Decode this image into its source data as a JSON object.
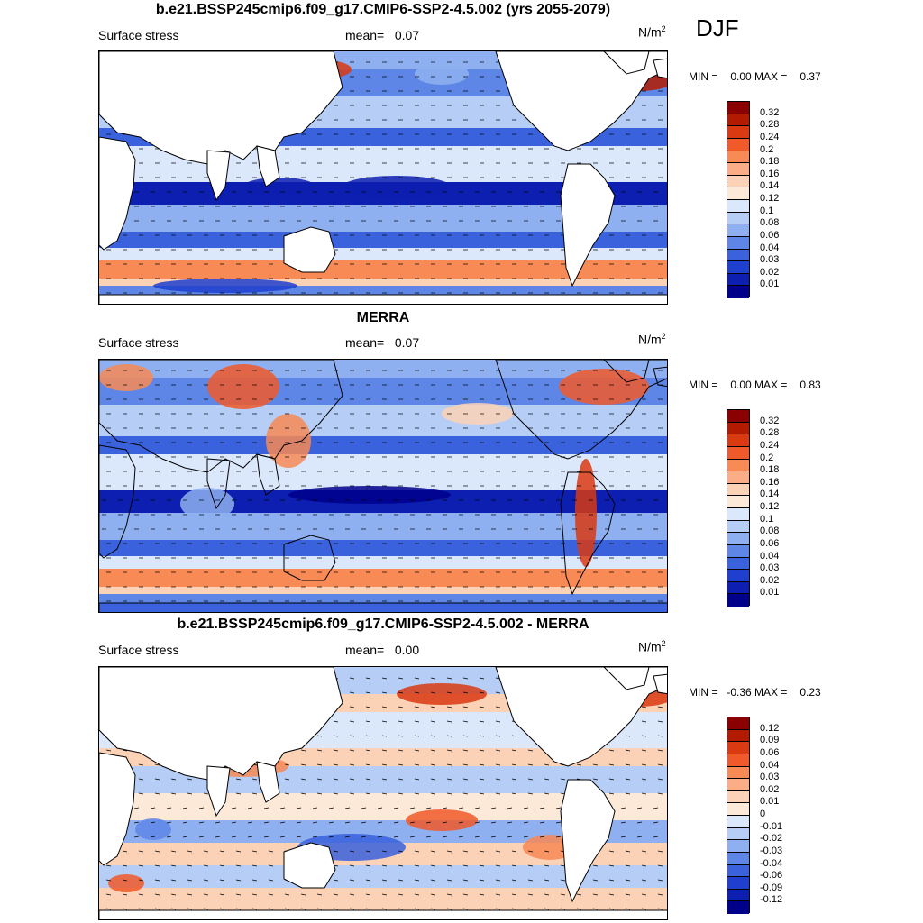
{
  "season": "DJF",
  "panels": [
    {
      "title": "b.e21.BSSP245cmip6.f09_g17.CMIP6-SSP2-4.5.002 (yrs 2055-2079)",
      "left_label": "Surface stress",
      "mean_label": "mean=",
      "mean_value": "0.07",
      "units": "N/m",
      "units_exp": "2",
      "min_label": "MIN =",
      "min_value": "0.00",
      "max_label": "MAX =",
      "max_value": "0.37",
      "colorbar": {
        "labels": [
          "0.32",
          "0.28",
          "0.24",
          "0.2",
          "0.18",
          "0.16",
          "0.14",
          "0.12",
          "0.1",
          "0.08",
          "0.06",
          "0.04",
          "0.03",
          "0.02",
          "0.01"
        ],
        "colors": [
          "#8b0000",
          "#b31b00",
          "#d93a12",
          "#f0592a",
          "#f78a55",
          "#fbae85",
          "#fcd2b6",
          "#fde9d8",
          "#dbe7fb",
          "#b6cdf6",
          "#8fb0f0",
          "#5d86e6",
          "#3a62dc",
          "#1f3fce",
          "#0d1fb0",
          "#00008b"
        ]
      }
    },
    {
      "title": "MERRA",
      "left_label": "Surface stress",
      "mean_label": "mean=",
      "mean_value": "0.07",
      "units": "N/m",
      "units_exp": "2",
      "min_label": "MIN =",
      "min_value": "0.00",
      "max_label": "MAX =",
      "max_value": "0.83",
      "colorbar": {
        "labels": [
          "0.32",
          "0.28",
          "0.24",
          "0.2",
          "0.18",
          "0.16",
          "0.14",
          "0.12",
          "0.1",
          "0.08",
          "0.06",
          "0.04",
          "0.03",
          "0.02",
          "0.01"
        ],
        "colors": [
          "#8b0000",
          "#b31b00",
          "#d93a12",
          "#f0592a",
          "#f78a55",
          "#fbae85",
          "#fcd2b6",
          "#fde9d8",
          "#dbe7fb",
          "#b6cdf6",
          "#8fb0f0",
          "#5d86e6",
          "#3a62dc",
          "#1f3fce",
          "#0d1fb0",
          "#00008b"
        ]
      }
    },
    {
      "title": "b.e21.BSSP245cmip6.f09_g17.CMIP6-SSP2-4.5.002 - MERRA",
      "left_label": "Surface stress",
      "mean_label": "mean=",
      "mean_value": "0.00",
      "units": "N/m",
      "units_exp": "2",
      "min_label": "MIN =",
      "min_value": "-0.36",
      "max_label": "MAX =",
      "max_value": "0.23",
      "colorbar": {
        "labels": [
          "0.12",
          "0.09",
          "0.06",
          "0.04",
          "0.03",
          "0.02",
          "0.01",
          "0",
          "-0.01",
          "-0.02",
          "-0.03",
          "-0.04",
          "-0.06",
          "-0.09",
          "-0.12"
        ],
        "colors": [
          "#8b0000",
          "#b31b00",
          "#d93a12",
          "#f0592a",
          "#f78a55",
          "#fbae85",
          "#fcd2b6",
          "#fde9d8",
          "#dbe7fb",
          "#b6cdf6",
          "#8fb0f0",
          "#5d86e6",
          "#3a62dc",
          "#1f3fce",
          "#0d1fb0",
          "#00008b"
        ]
      }
    }
  ]
}
